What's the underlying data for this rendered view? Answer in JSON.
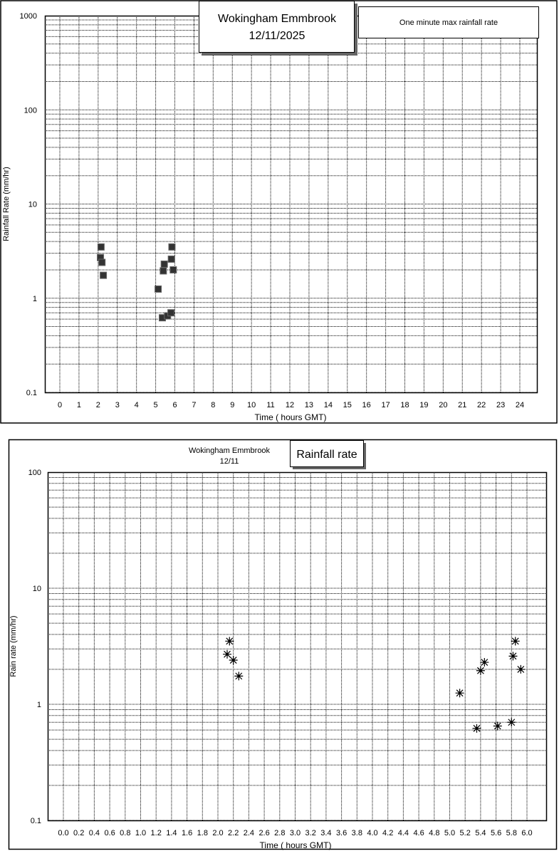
{
  "chart_data": [
    {
      "type": "scatter",
      "title": "Wokingham Emmbrook",
      "subtitle": "12/11/2025",
      "legend": "One minute max rainfall rate",
      "xlabel": "Time ( hours GMT)",
      "ylabel": "Rainfall Rate (mm/hr)",
      "xlim": [
        0,
        24
      ],
      "ylim": [
        0.1,
        1000
      ],
      "yscale": "log",
      "grid": true,
      "xticks": [
        "0",
        "1",
        "2",
        "3",
        "4",
        "5",
        "6",
        "7",
        "8",
        "9",
        "10",
        "11",
        "12",
        "13",
        "14",
        "15",
        "16",
        "17",
        "18",
        "19",
        "20",
        "21",
        "22",
        "23",
        "24"
      ],
      "yticks": [
        "0.1",
        "1",
        "10",
        "100",
        "1000"
      ],
      "marker": "square",
      "x": [
        2.12,
        2.15,
        2.2,
        2.27,
        5.13,
        5.35,
        5.4,
        5.45,
        5.62,
        5.8,
        5.82,
        5.85,
        5.92
      ],
      "y": [
        2.7,
        3.5,
        2.4,
        1.75,
        1.25,
        0.62,
        1.95,
        2.3,
        0.65,
        0.7,
        2.6,
        3.5,
        2.0
      ]
    },
    {
      "type": "scatter",
      "title": "Rainfall rate",
      "station": "Wokingham Emmbrook",
      "subtitle": "12/11",
      "xlabel": "Time ( hours GMT)",
      "ylabel": "Rain rate (mm/hr)",
      "xlim": [
        0,
        6
      ],
      "ylim": [
        0.1,
        100
      ],
      "yscale": "log",
      "grid": true,
      "xticks": [
        "0.0",
        "0.2",
        "0.4",
        "0.6",
        "0.8",
        "1.0",
        "1.2",
        "1.4",
        "1.6",
        "1.8",
        "2.0",
        "2.2",
        "2.4",
        "2.6",
        "2.8",
        "3.0",
        "3.2",
        "3.4",
        "3.6",
        "3.8",
        "4.0",
        "4.2",
        "4.4",
        "4.6",
        "4.8",
        "5.0",
        "5.2",
        "5.4",
        "5.6",
        "5.8",
        "6.0"
      ],
      "yticks": [
        "0.1",
        "1",
        "10",
        "100"
      ],
      "marker": "asterisk",
      "x": [
        2.12,
        2.15,
        2.2,
        2.27,
        5.13,
        5.35,
        5.4,
        5.45,
        5.62,
        5.8,
        5.82,
        5.85,
        5.92
      ],
      "y": [
        2.7,
        3.5,
        2.4,
        1.75,
        1.25,
        0.62,
        1.95,
        2.3,
        0.65,
        0.7,
        2.6,
        3.5,
        2.0
      ]
    }
  ]
}
